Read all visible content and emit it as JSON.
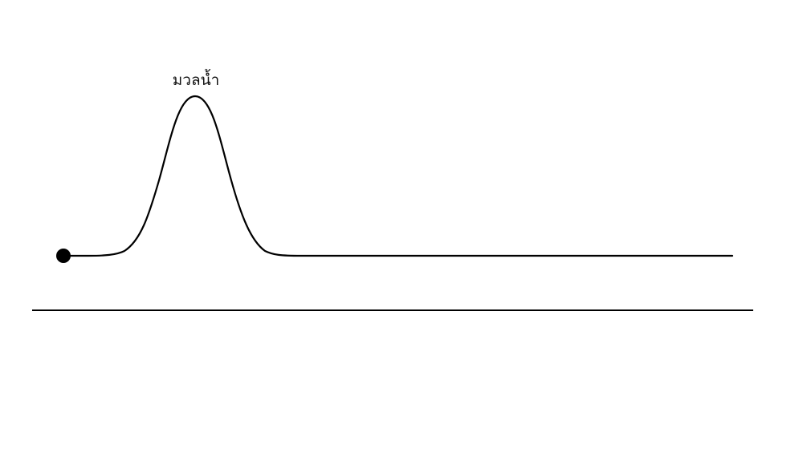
{
  "diagram": {
    "pulse_label": "มวลน้ำ",
    "line_color": "#000000"
  }
}
